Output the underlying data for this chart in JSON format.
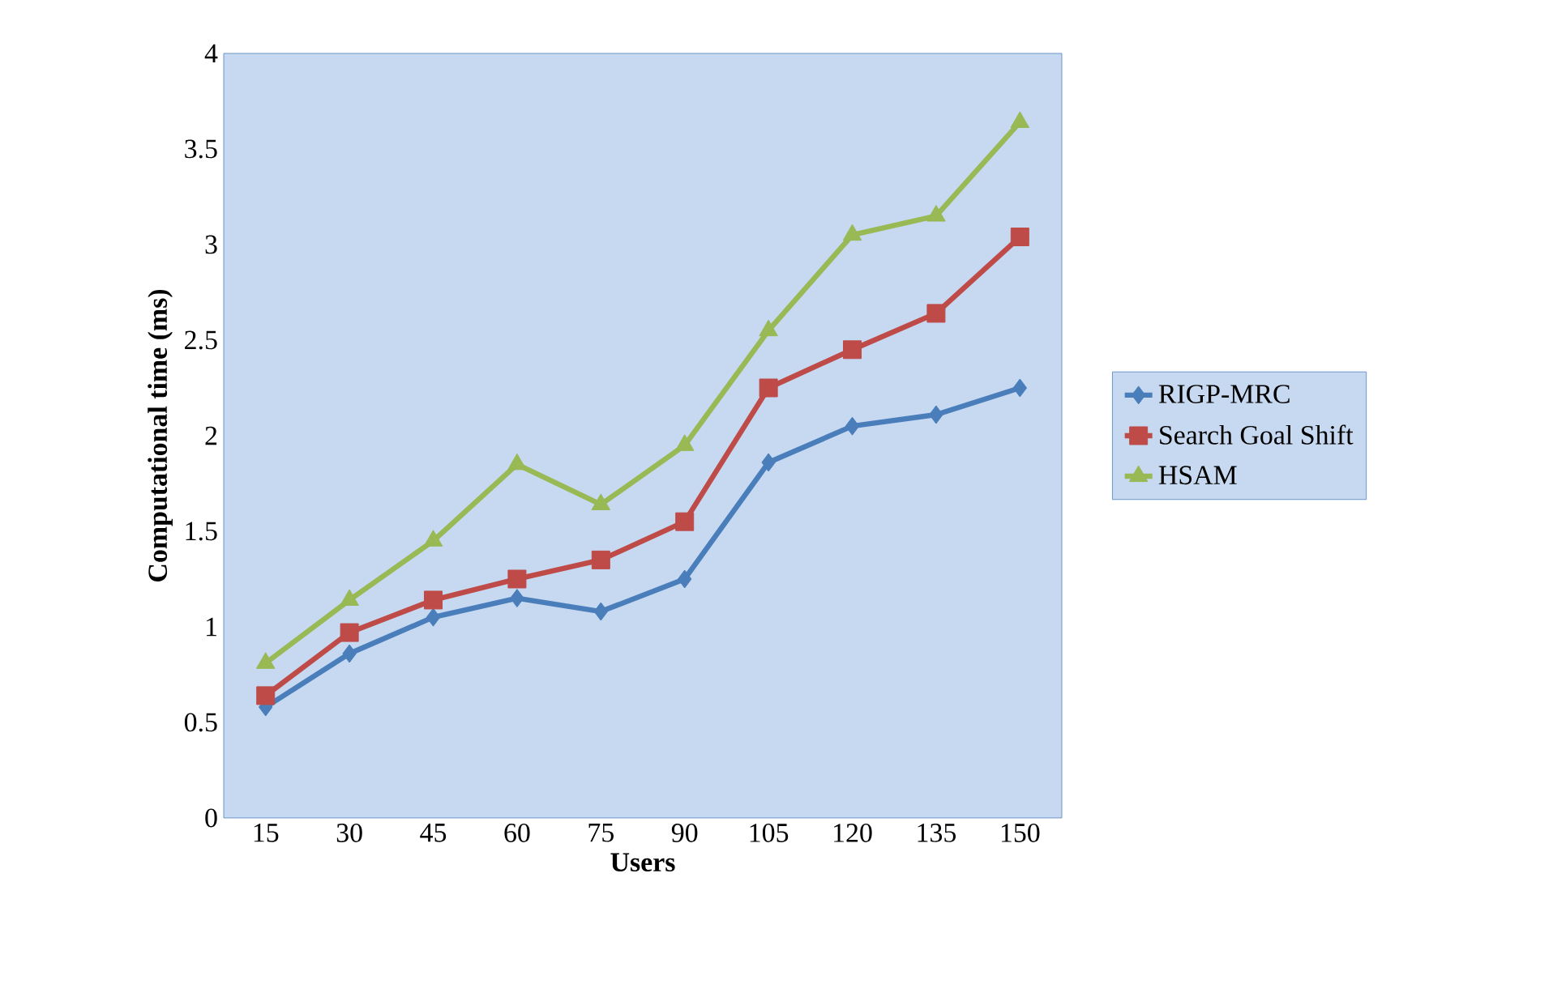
{
  "chart_data": {
    "type": "line",
    "xlabel": "Users",
    "ylabel": "Computational time (ms)",
    "categories": [
      "15",
      "30",
      "45",
      "60",
      "75",
      "90",
      "105",
      "120",
      "135",
      "150"
    ],
    "ylim": [
      0,
      4
    ],
    "yticks": [
      0,
      0.5,
      1,
      1.5,
      2,
      2.5,
      3,
      3.5,
      4
    ],
    "grid": false,
    "legend": "right",
    "line_style": "solid",
    "series": [
      {
        "name": "RIGP-MRC",
        "color": "#4a7ebb",
        "marker": "diamond",
        "values": [
          0.58,
          0.86,
          1.05,
          1.15,
          1.08,
          1.25,
          1.86,
          2.05,
          2.11,
          2.25
        ]
      },
      {
        "name": "Search Goal Shift",
        "color": "#be4b48",
        "marker": "square",
        "values": [
          0.64,
          0.97,
          1.14,
          1.25,
          1.35,
          1.55,
          2.25,
          2.45,
          2.64,
          3.04
        ]
      },
      {
        "name": "HSAM",
        "color": "#98b954",
        "marker": "triangle",
        "values": [
          0.81,
          1.14,
          1.45,
          1.85,
          1.64,
          1.95,
          2.55,
          3.05,
          3.15,
          3.64
        ]
      }
    ]
  }
}
